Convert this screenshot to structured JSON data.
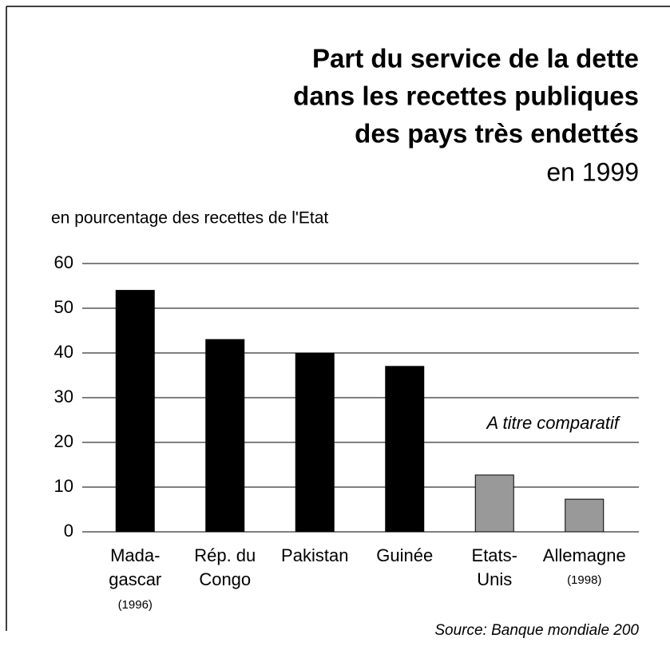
{
  "chart_data": {
    "type": "bar",
    "title": [
      "Part du service de la dette",
      "dans les recettes publiques",
      "des pays très endettés"
    ],
    "subtitle": "en 1999",
    "y_label": "en pourcentage des recettes de l'Etat",
    "annotation": "A titre comparatif",
    "source": "Source:  Banque mondiale 200",
    "categories": [
      [
        "Mada-",
        "gascar"
      ],
      [
        "Rép. du",
        "Congo"
      ],
      [
        "Pakistan"
      ],
      [
        "Guinée"
      ],
      [
        "Etats-",
        "Unis"
      ],
      [
        "Allemagne"
      ]
    ],
    "category_notes": [
      "(1996)",
      null,
      null,
      null,
      null,
      "(1998)"
    ],
    "values": [
      54,
      43,
      40,
      37,
      12.7,
      7.3
    ],
    "colors": [
      "#000000",
      "#000000",
      "#000000",
      "#000000",
      "#999999",
      "#999999"
    ],
    "ylim": [
      0,
      60
    ],
    "yticks": [
      0,
      10,
      20,
      30,
      40,
      50,
      60
    ],
    "grid": true
  }
}
